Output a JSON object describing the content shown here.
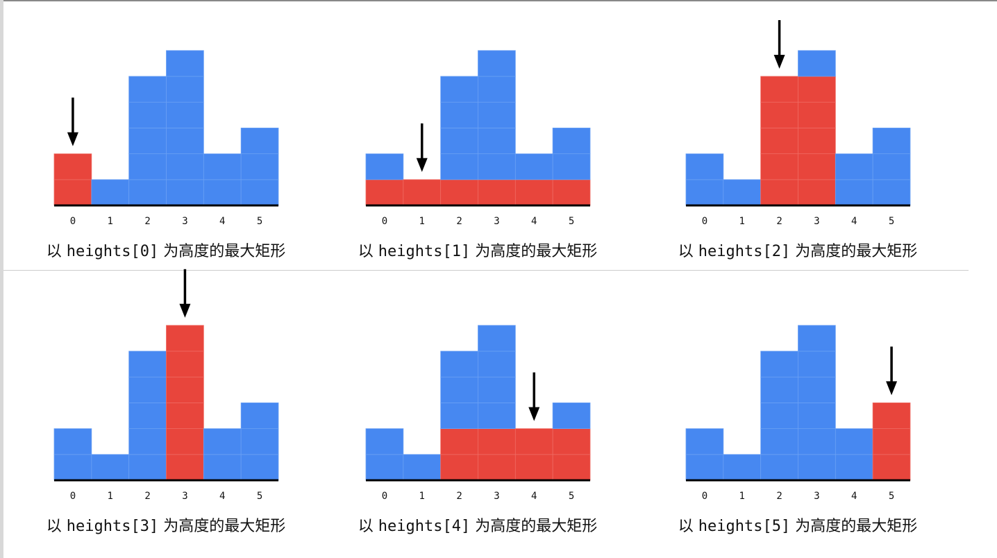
{
  "heights": [
    2,
    1,
    5,
    6,
    2,
    3
  ],
  "tick_labels": [
    "0",
    "1",
    "2",
    "3",
    "4",
    "5"
  ],
  "colors": {
    "bar": "#4788f1",
    "highlight": "#e8453c",
    "axis": "#000000",
    "arrow": "#000000"
  },
  "panels": [
    {
      "index": 0,
      "highlight_from": 0,
      "highlight_to": 0,
      "highlight_height": 2,
      "caption_prefix": "以 ",
      "caption_code": "heights[0]",
      "caption_suffix": " 为高度的最大矩形"
    },
    {
      "index": 1,
      "highlight_from": 0,
      "highlight_to": 5,
      "highlight_height": 1,
      "caption_prefix": "以 ",
      "caption_code": "heights[1]",
      "caption_suffix": " 为高度的最大矩形"
    },
    {
      "index": 2,
      "highlight_from": 2,
      "highlight_to": 3,
      "highlight_height": 5,
      "caption_prefix": "以 ",
      "caption_code": "heights[2]",
      "caption_suffix": " 为高度的最大矩形"
    },
    {
      "index": 3,
      "highlight_from": 3,
      "highlight_to": 3,
      "highlight_height": 6,
      "caption_prefix": "以 ",
      "caption_code": "heights[3]",
      "caption_suffix": " 为高度的最大矩形"
    },
    {
      "index": 4,
      "highlight_from": 2,
      "highlight_to": 5,
      "highlight_height": 2,
      "caption_prefix": "以 ",
      "caption_code": "heights[4]",
      "caption_suffix": " 为高度的最大矩形"
    },
    {
      "index": 5,
      "highlight_from": 5,
      "highlight_to": 5,
      "highlight_height": 3,
      "caption_prefix": "以 ",
      "caption_code": "heights[5]",
      "caption_suffix": " 为高度的最大矩形"
    }
  ]
}
